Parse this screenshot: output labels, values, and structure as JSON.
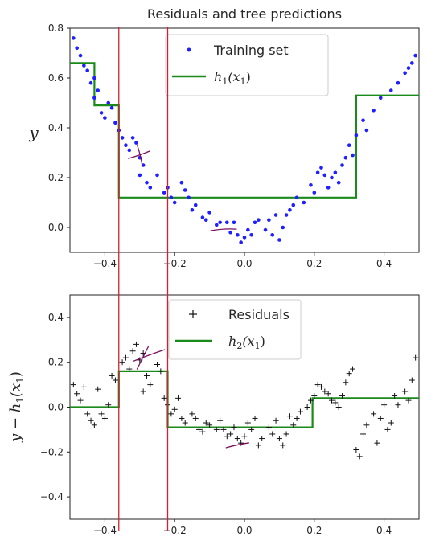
{
  "colors": {
    "points": "#1f1fff",
    "line": "#1a8a1a",
    "red": "#cc2233",
    "ink": "#7a1060",
    "axis": "#222222",
    "residual": "#111111"
  },
  "chart_data": [
    {
      "type": "scatter",
      "title": "Residuals and tree predictions",
      "ylabel": "y",
      "xlim": [
        -0.5,
        0.5
      ],
      "ylim": [
        -0.1,
        0.8
      ],
      "xticks": [
        -0.4,
        -0.2,
        0.0,
        0.2,
        0.4
      ],
      "yticks": [
        0.0,
        0.2,
        0.4,
        0.6,
        0.8
      ],
      "xtick_labels": [
        "−0.4",
        "−0.2",
        "0.0",
        "0.2",
        "0.4"
      ],
      "ytick_labels": [
        "0.0",
        "0.2",
        "0.4",
        "0.6",
        "0.8"
      ],
      "legend": {
        "placement": "upper-center",
        "entries": [
          {
            "label": "Training set",
            "marker": "dot"
          },
          {
            "label": "h1(x1)",
            "marker": "line"
          }
        ]
      },
      "series": [
        {
          "name": "Training set",
          "points": [
            [
              -0.49,
              0.76
            ],
            [
              -0.48,
              0.72
            ],
            [
              -0.47,
              0.69
            ],
            [
              -0.46,
              0.65
            ],
            [
              -0.45,
              0.63
            ],
            [
              -0.44,
              0.58
            ],
            [
              -0.43,
              0.6
            ],
            [
              -0.42,
              0.55
            ],
            [
              -0.43,
              0.52
            ],
            [
              -0.41,
              0.46
            ],
            [
              -0.4,
              0.44
            ],
            [
              -0.39,
              0.5
            ],
            [
              -0.38,
              0.48
            ],
            [
              -0.37,
              0.42
            ],
            [
              -0.36,
              0.39
            ],
            [
              -0.35,
              0.36
            ],
            [
              -0.34,
              0.33
            ],
            [
              -0.33,
              0.31
            ],
            [
              -0.32,
              0.36
            ],
            [
              -0.31,
              0.34
            ],
            [
              -0.3,
              0.28
            ],
            [
              -0.29,
              0.25
            ],
            [
              -0.3,
              0.21
            ],
            [
              -0.28,
              0.18
            ],
            [
              -0.27,
              0.16
            ],
            [
              -0.25,
              0.21
            ],
            [
              -0.23,
              0.14
            ],
            [
              -0.22,
              0.16
            ],
            [
              -0.21,
              0.12
            ],
            [
              -0.2,
              0.1
            ],
            [
              -0.18,
              0.18
            ],
            [
              -0.17,
              0.15
            ],
            [
              -0.16,
              0.12
            ],
            [
              -0.15,
              0.07
            ],
            [
              -0.14,
              0.09
            ],
            [
              -0.12,
              0.04
            ],
            [
              -0.11,
              0.03
            ],
            [
              -0.1,
              0.06
            ],
            [
              -0.08,
              0.01
            ],
            [
              -0.07,
              0.02
            ],
            [
              -0.05,
              0.02
            ],
            [
              -0.04,
              -0.02
            ],
            [
              -0.03,
              0.02
            ],
            [
              -0.02,
              -0.03
            ],
            [
              -0.01,
              -0.06
            ],
            [
              0.0,
              -0.04
            ],
            [
              0.01,
              -0.01
            ],
            [
              0.02,
              -0.03
            ],
            [
              0.03,
              0.02
            ],
            [
              0.04,
              0.03
            ],
            [
              0.06,
              -0.01
            ],
            [
              0.07,
              0.03
            ],
            [
              0.08,
              -0.03
            ],
            [
              0.09,
              0.05
            ],
            [
              0.1,
              -0.05
            ],
            [
              0.11,
              0.0
            ],
            [
              0.12,
              0.05
            ],
            [
              0.13,
              0.07
            ],
            [
              0.14,
              0.09
            ],
            [
              0.15,
              0.12
            ],
            [
              0.17,
              0.1
            ],
            [
              0.19,
              0.17
            ],
            [
              0.2,
              0.14
            ],
            [
              0.21,
              0.22
            ],
            [
              0.22,
              0.24
            ],
            [
              0.23,
              0.21
            ],
            [
              0.24,
              0.16
            ],
            [
              0.25,
              0.2
            ],
            [
              0.26,
              0.22
            ],
            [
              0.27,
              0.18
            ],
            [
              0.28,
              0.25
            ],
            [
              0.29,
              0.28
            ],
            [
              0.3,
              0.33
            ],
            [
              0.31,
              0.29
            ],
            [
              0.32,
              0.37
            ],
            [
              0.34,
              0.43
            ],
            [
              0.35,
              0.39
            ],
            [
              0.37,
              0.47
            ],
            [
              0.39,
              0.52
            ],
            [
              0.42,
              0.55
            ],
            [
              0.44,
              0.58
            ],
            [
              0.46,
              0.62
            ],
            [
              0.47,
              0.64
            ],
            [
              0.48,
              0.66
            ],
            [
              0.49,
              0.69
            ]
          ]
        },
        {
          "name": "h1(x1)",
          "line": [
            [
              -0.5,
              0.66
            ],
            [
              -0.43,
              0.66
            ],
            [
              -0.43,
              0.49
            ],
            [
              -0.36,
              0.49
            ],
            [
              -0.36,
              0.12
            ],
            [
              0.32,
              0.12
            ],
            [
              0.32,
              0.53
            ],
            [
              0.5,
              0.53
            ]
          ]
        }
      ]
    },
    {
      "type": "scatter",
      "ylabel": "y − h1(x1)",
      "xlim": [
        -0.5,
        0.5
      ],
      "ylim": [
        -0.5,
        0.5
      ],
      "xticks": [
        -0.4,
        -0.2,
        0.0,
        0.2,
        0.4
      ],
      "yticks": [
        -0.4,
        -0.2,
        0.0,
        0.2,
        0.4
      ],
      "xtick_labels": [
        "−0.4",
        "−0.2",
        "0.0",
        "0.2",
        "0.4"
      ],
      "ytick_labels": [
        "−0.4",
        "−0.2",
        "0.0",
        "0.2",
        "0.4"
      ],
      "legend": {
        "placement": "upper-center",
        "entries": [
          {
            "label": "Residuals",
            "marker": "plus"
          },
          {
            "label": "h2(x1)",
            "marker": "line"
          }
        ]
      },
      "series": [
        {
          "name": "Residuals",
          "points": [
            [
              -0.49,
              0.1
            ],
            [
              -0.48,
              0.06
            ],
            [
              -0.47,
              0.03
            ],
            [
              -0.46,
              0.09
            ],
            [
              -0.45,
              -0.03
            ],
            [
              -0.44,
              -0.06
            ],
            [
              -0.43,
              -0.08
            ],
            [
              -0.42,
              0.08
            ],
            [
              -0.41,
              -0.03
            ],
            [
              -0.4,
              -0.05
            ],
            [
              -0.39,
              0.01
            ],
            [
              -0.38,
              0.14
            ],
            [
              -0.37,
              0.12
            ],
            [
              -0.35,
              0.2
            ],
            [
              -0.34,
              0.22
            ],
            [
              -0.33,
              0.17
            ],
            [
              -0.32,
              0.25
            ],
            [
              -0.31,
              0.28
            ],
            [
              -0.3,
              0.21
            ],
            [
              -0.29,
              0.24
            ],
            [
              -0.28,
              0.14
            ],
            [
              -0.27,
              0.1
            ],
            [
              -0.29,
              0.07
            ],
            [
              -0.25,
              0.19
            ],
            [
              -0.24,
              0.16
            ],
            [
              -0.23,
              0.04
            ],
            [
              -0.22,
              0.01
            ],
            [
              -0.21,
              -0.03
            ],
            [
              -0.2,
              -0.01
            ],
            [
              -0.19,
              0.04
            ],
            [
              -0.18,
              -0.05
            ],
            [
              -0.17,
              -0.07
            ],
            [
              -0.15,
              -0.03
            ],
            [
              -0.14,
              -0.05
            ],
            [
              -0.13,
              -0.1
            ],
            [
              -0.12,
              -0.11
            ],
            [
              -0.11,
              -0.07
            ],
            [
              -0.1,
              -0.08
            ],
            [
              -0.08,
              -0.1
            ],
            [
              -0.07,
              -0.06
            ],
            [
              -0.06,
              -0.1
            ],
            [
              -0.05,
              -0.13
            ],
            [
              -0.04,
              -0.12
            ],
            [
              -0.03,
              -0.09
            ],
            [
              -0.02,
              -0.14
            ],
            [
              -0.01,
              -0.16
            ],
            [
              0.0,
              -0.13
            ],
            [
              0.01,
              -0.07
            ],
            [
              0.02,
              -0.1
            ],
            [
              0.03,
              -0.05
            ],
            [
              0.04,
              -0.17
            ],
            [
              0.05,
              -0.14
            ],
            [
              0.07,
              -0.09
            ],
            [
              0.08,
              -0.12
            ],
            [
              0.09,
              -0.06
            ],
            [
              0.1,
              -0.14
            ],
            [
              0.11,
              -0.17
            ],
            [
              0.12,
              -0.12
            ],
            [
              0.13,
              -0.04
            ],
            [
              0.14,
              -0.08
            ],
            [
              0.15,
              -0.05
            ],
            [
              0.16,
              -0.02
            ],
            [
              0.18,
              0.0
            ],
            [
              0.19,
              0.03
            ],
            [
              0.2,
              0.05
            ],
            [
              0.21,
              0.1
            ],
            [
              0.22,
              0.09
            ],
            [
              0.23,
              0.07
            ],
            [
              0.24,
              0.06
            ],
            [
              0.25,
              0.03
            ],
            [
              0.26,
              0.02
            ],
            [
              0.27,
              0.0
            ],
            [
              0.28,
              0.05
            ],
            [
              0.29,
              0.11
            ],
            [
              0.3,
              0.15
            ],
            [
              0.31,
              0.17
            ],
            [
              0.32,
              -0.19
            ],
            [
              0.33,
              -0.22
            ],
            [
              0.34,
              -0.12
            ],
            [
              0.35,
              -0.08
            ],
            [
              0.37,
              -0.03
            ],
            [
              0.38,
              -0.16
            ],
            [
              0.39,
              -0.05
            ],
            [
              0.4,
              0.01
            ],
            [
              0.41,
              -0.1
            ],
            [
              0.42,
              -0.07
            ],
            [
              0.43,
              0.05
            ],
            [
              0.44,
              0.01
            ],
            [
              0.46,
              0.07
            ],
            [
              0.47,
              0.03
            ],
            [
              0.48,
              0.12
            ],
            [
              0.49,
              0.22
            ]
          ]
        },
        {
          "name": "h2(x1)",
          "line": [
            [
              -0.5,
              0.0
            ],
            [
              -0.36,
              0.0
            ],
            [
              -0.36,
              0.16
            ],
            [
              -0.22,
              0.16
            ],
            [
              -0.22,
              -0.09
            ],
            [
              0.195,
              -0.09
            ],
            [
              0.195,
              0.04
            ],
            [
              0.5,
              0.04
            ]
          ]
        }
      ]
    }
  ],
  "vertical_markers_x": [
    -0.36,
    -0.22
  ],
  "annotations": [
    {
      "note": "hand-drawn marks",
      "at": [
        -0.3,
        0.29
      ],
      "panel": 0
    },
    {
      "note": "hand-drawn marks",
      "at": [
        -0.06,
        -0.01
      ],
      "panel": 0
    },
    {
      "note": "hand-drawn marks",
      "at": [
        -0.28,
        0.22
      ],
      "panel": 1
    },
    {
      "note": "hand-drawn marks",
      "at": [
        -0.02,
        -0.17
      ],
      "panel": 1
    }
  ]
}
